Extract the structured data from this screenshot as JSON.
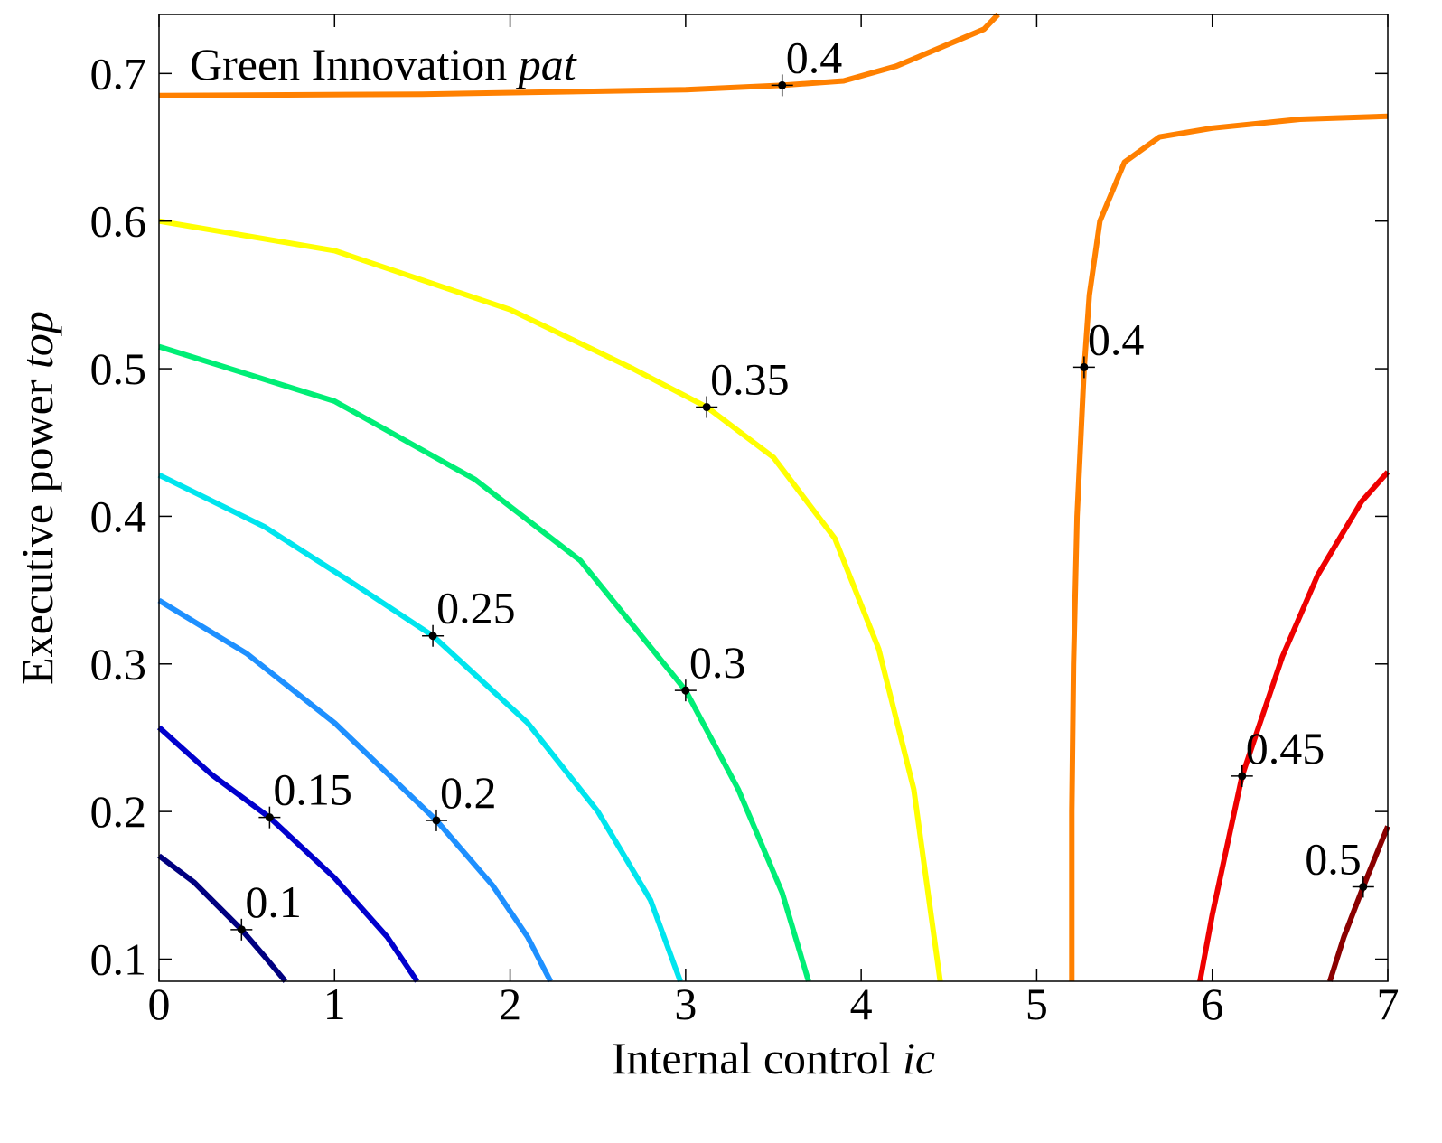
{
  "chart_data": {
    "type": "contour",
    "title": {
      "text": "Green Innovation ",
      "italic": "pat"
    },
    "xlabel": {
      "text": "Internal control ",
      "italic": "ic"
    },
    "ylabel": {
      "text": "Executive power ",
      "italic": "top"
    },
    "xlim": [
      0,
      7
    ],
    "ylim": [
      0.085,
      0.74
    ],
    "xticks": [
      0,
      1,
      2,
      3,
      4,
      5,
      6,
      7
    ],
    "xtick_labels": [
      "0",
      "1",
      "2",
      "3",
      "4",
      "5",
      "6",
      "7"
    ],
    "yticks": [
      0.1,
      0.2,
      0.3,
      0.4,
      0.5,
      0.6,
      0.7
    ],
    "ytick_labels": [
      "0.1",
      "0.2",
      "0.3",
      "0.4",
      "0.5",
      "0.6",
      "0.7"
    ],
    "grid": false,
    "contours": [
      {
        "level": "0.1",
        "color": "#000080",
        "segments": [
          [
            [
              0,
              0.17
            ],
            [
              0.2,
              0.152
            ],
            [
              0.47,
              0.12
            ],
            [
              0.6,
              0.102
            ],
            [
              0.72,
              0.085
            ]
          ]
        ],
        "labels": [
          {
            "text": "0.1",
            "x": 0.47,
            "y": 0.12
          }
        ]
      },
      {
        "level": "0.15",
        "color": "#0000CD",
        "segments": [
          [
            [
              0,
              0.257
            ],
            [
              0.3,
              0.225
            ],
            [
              0.63,
              0.196
            ],
            [
              1.0,
              0.155
            ],
            [
              1.3,
              0.115
            ],
            [
              1.47,
              0.085
            ]
          ]
        ],
        "labels": [
          {
            "text": "0.15",
            "x": 0.63,
            "y": 0.196
          }
        ]
      },
      {
        "level": "0.2",
        "color": "#1E90FF",
        "segments": [
          [
            [
              0,
              0.343
            ],
            [
              0.5,
              0.307
            ],
            [
              1.0,
              0.26
            ],
            [
              1.58,
              0.194
            ],
            [
              1.9,
              0.15
            ],
            [
              2.1,
              0.115
            ],
            [
              2.23,
              0.085
            ]
          ]
        ],
        "labels": [
          {
            "text": "0.2",
            "x": 1.58,
            "y": 0.194
          }
        ]
      },
      {
        "level": "0.25",
        "color": "#00E5EE",
        "segments": [
          [
            [
              0,
              0.428
            ],
            [
              0.6,
              0.393
            ],
            [
              1.1,
              0.355
            ],
            [
              1.56,
              0.319
            ],
            [
              2.1,
              0.26
            ],
            [
              2.5,
              0.2
            ],
            [
              2.8,
              0.14
            ],
            [
              2.97,
              0.085
            ]
          ]
        ],
        "labels": [
          {
            "text": "0.25",
            "x": 1.56,
            "y": 0.319
          }
        ]
      },
      {
        "level": "0.3",
        "color": "#00EE76",
        "segments": [
          [
            [
              0,
              0.515
            ],
            [
              1.0,
              0.478
            ],
            [
              1.8,
              0.425
            ],
            [
              2.4,
              0.37
            ],
            [
              3.0,
              0.282
            ],
            [
              3.3,
              0.215
            ],
            [
              3.55,
              0.145
            ],
            [
              3.7,
              0.085
            ]
          ]
        ],
        "labels": [
          {
            "text": "0.3",
            "x": 3.0,
            "y": 0.282
          }
        ]
      },
      {
        "level": "0.35",
        "color": "#FFFF00",
        "segments": [
          [
            [
              0,
              0.6
            ],
            [
              1.0,
              0.58
            ],
            [
              2.0,
              0.54
            ],
            [
              2.7,
              0.5
            ],
            [
              3.12,
              0.474
            ],
            [
              3.5,
              0.44
            ],
            [
              3.85,
              0.385
            ],
            [
              4.1,
              0.31
            ],
            [
              4.3,
              0.215
            ],
            [
              4.45,
              0.085
            ]
          ]
        ],
        "labels": [
          {
            "text": "0.35",
            "x": 3.12,
            "y": 0.474
          }
        ]
      },
      {
        "level": "0.4",
        "color": "#FF8000",
        "segments": [
          [
            [
              0,
              0.685
            ],
            [
              1.5,
              0.686
            ],
            [
              3.0,
              0.689
            ],
            [
              3.55,
              0.692
            ],
            [
              3.9,
              0.695
            ],
            [
              4.2,
              0.705
            ],
            [
              4.5,
              0.72
            ],
            [
              4.7,
              0.73
            ],
            [
              4.78,
              0.74
            ]
          ],
          [
            [
              5.2,
              0.085
            ],
            [
              5.2,
              0.2
            ],
            [
              5.21,
              0.3
            ],
            [
              5.23,
              0.4
            ],
            [
              5.27,
              0.5
            ],
            [
              5.3,
              0.55
            ],
            [
              5.36,
              0.6
            ],
            [
              5.5,
              0.64
            ],
            [
              5.7,
              0.657
            ],
            [
              6.0,
              0.663
            ],
            [
              6.5,
              0.669
            ],
            [
              7.0,
              0.671
            ]
          ]
        ],
        "labels": [
          {
            "text": "0.4",
            "x": 3.55,
            "y": 0.692
          },
          {
            "text": "0.4",
            "x": 5.27,
            "y": 0.501
          }
        ]
      },
      {
        "level": "0.45",
        "color": "#EE0000",
        "segments": [
          [
            [
              5.93,
              0.085
            ],
            [
              6.0,
              0.13
            ],
            [
              6.17,
              0.224
            ],
            [
              6.4,
              0.305
            ],
            [
              6.6,
              0.36
            ],
            [
              6.85,
              0.41
            ],
            [
              7.0,
              0.43
            ]
          ]
        ],
        "labels": [
          {
            "text": "0.45",
            "x": 6.17,
            "y": 0.224
          }
        ]
      },
      {
        "level": "0.5",
        "color": "#8B0000",
        "segments": [
          [
            [
              6.67,
              0.085
            ],
            [
              6.75,
              0.115
            ],
            [
              6.86,
              0.149
            ],
            [
              7.0,
              0.19
            ]
          ]
        ],
        "labels": [
          {
            "text": "0.5",
            "x": 6.86,
            "y": 0.149
          }
        ]
      }
    ]
  }
}
